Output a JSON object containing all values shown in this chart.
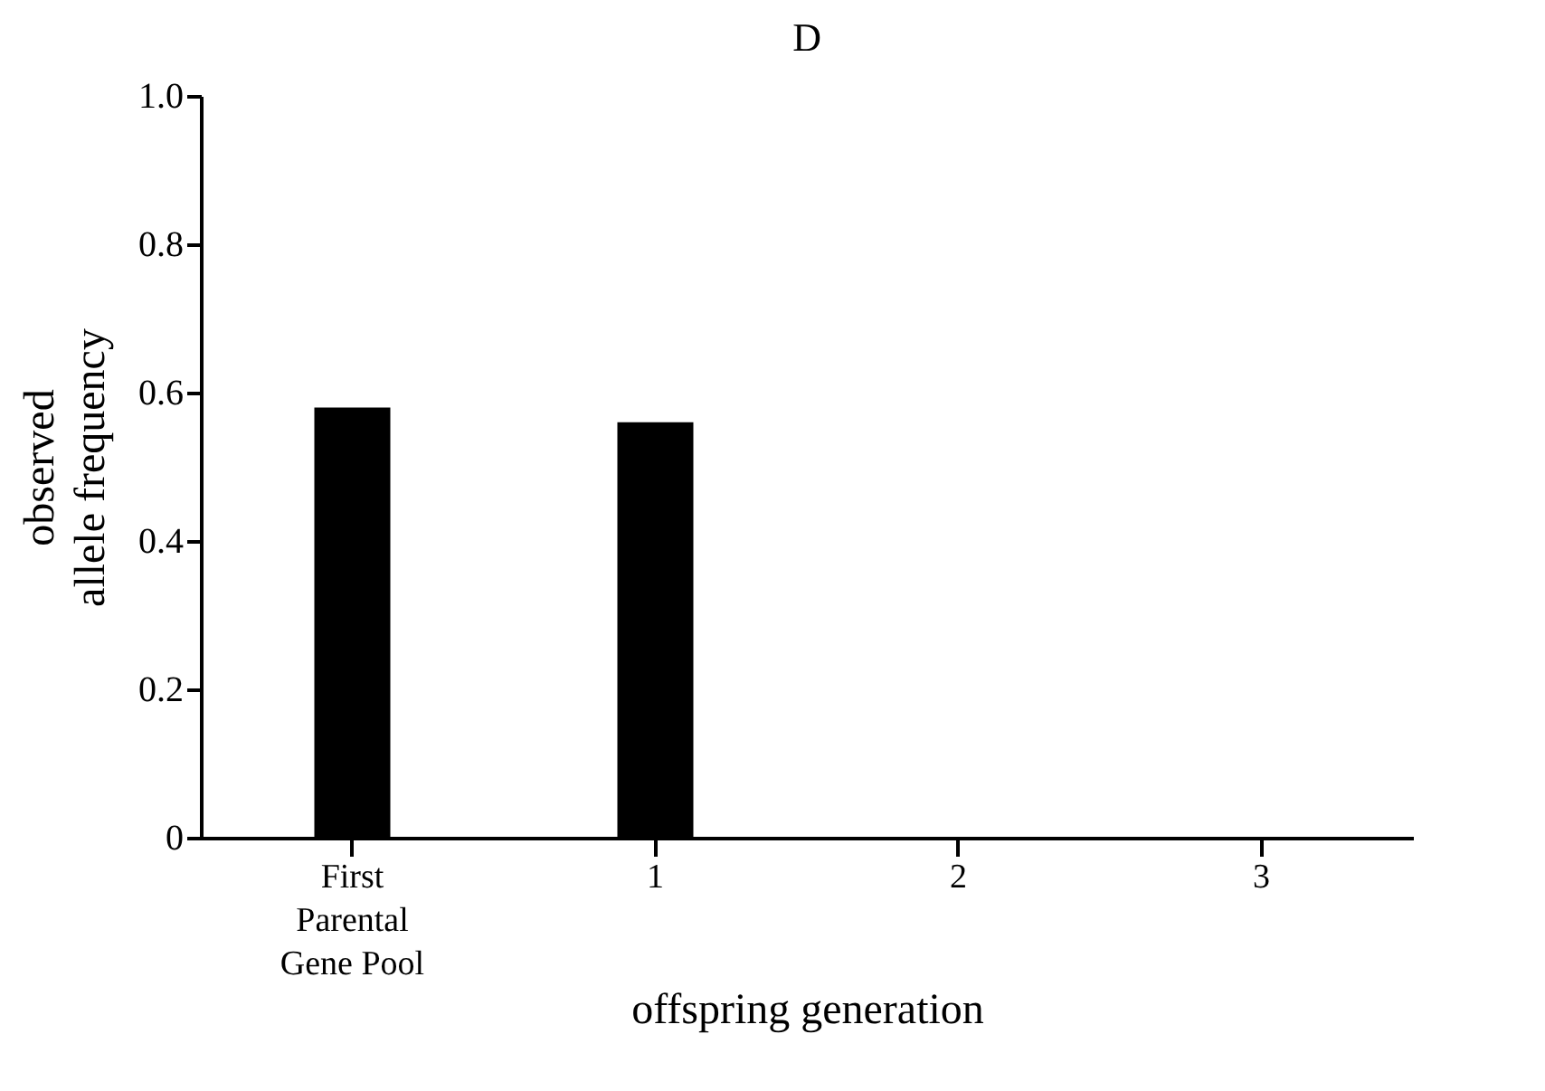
{
  "chart_data": {
    "type": "bar",
    "title": "D",
    "xlabel": "offspring generation",
    "ylabel": "observed allele frequency",
    "categories": [
      "First Parental Gene Pool",
      "1",
      "2",
      "3"
    ],
    "values": [
      0.58,
      0.56,
      null,
      null
    ],
    "color": "#000000",
    "ylim": [
      0,
      1
    ],
    "yticks": [
      0,
      0.2,
      0.4,
      0.6,
      0.8,
      {
        "value": 1,
        "label": "1.0"
      }
    ],
    "grid": false
  }
}
